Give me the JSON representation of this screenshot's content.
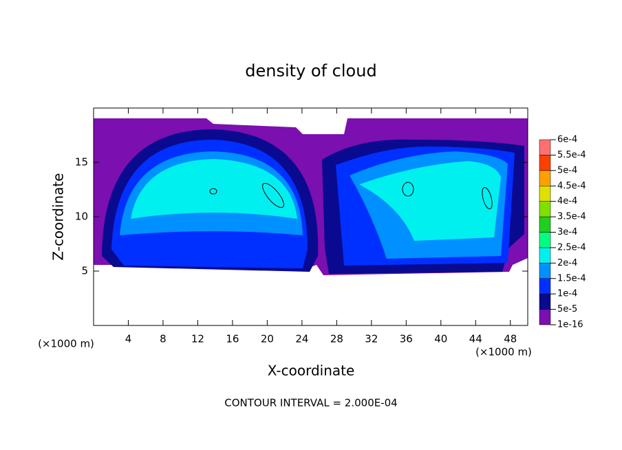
{
  "chart_data": {
    "type": "contour",
    "title": "density of cloud",
    "x_label": "X-coordinate",
    "y_label": "Z-coordinate",
    "x_unit": "(×1000 m)",
    "y_unit": "(×1000 m)",
    "footer": "CONTOUR INTERVAL = 2.000E-04",
    "xlim": [
      0,
      50
    ],
    "xticks": [
      4,
      8,
      12,
      16,
      20,
      24,
      28,
      32,
      36,
      40,
      44,
      48
    ],
    "ylim": [
      0,
      20
    ],
    "yticks": [
      5,
      10,
      15
    ],
    "colorbar_ticks": [
      {
        "value": 1e-16,
        "label": "1e-16"
      },
      {
        "value": 5e-05,
        "label": "5e-5"
      },
      {
        "value": 0.0001,
        "label": "1e-4"
      },
      {
        "value": 0.00015,
        "label": "1.5e-4"
      },
      {
        "value": 0.0002,
        "label": "2e-4"
      },
      {
        "value": 0.00025,
        "label": "2.5e-4"
      },
      {
        "value": 0.0003,
        "label": "3e-4"
      },
      {
        "value": 0.00035,
        "label": "3.5e-4"
      },
      {
        "value": 0.0004,
        "label": "4e-4"
      },
      {
        "value": 0.00045,
        "label": "4.5e-4"
      },
      {
        "value": 0.0005,
        "label": "5e-4"
      },
      {
        "value": 0.00055,
        "label": "5.5e-4"
      },
      {
        "value": 0.0006,
        "label": "6e-4"
      }
    ],
    "colors": [
      "#7b0fb0",
      "#0a0a90",
      "#0030ff",
      "#0090ff",
      "#00f0f0",
      "#00ff80",
      "#20d020",
      "#80e000",
      "#e0e000",
      "#ffa000",
      "#ff4000",
      "#ff7070"
    ]
  }
}
